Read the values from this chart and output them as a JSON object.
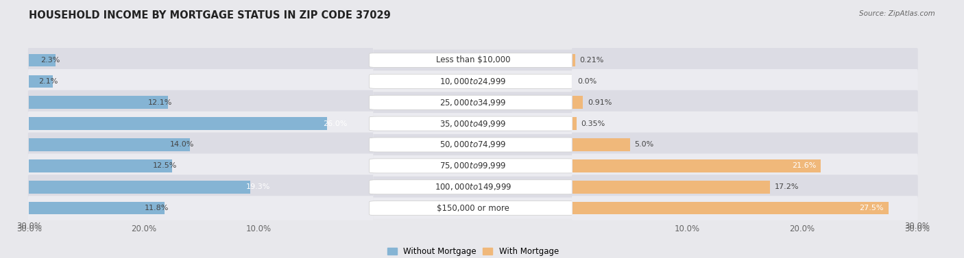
{
  "title": "HOUSEHOLD INCOME BY MORTGAGE STATUS IN ZIP CODE 37029",
  "source": "Source: ZipAtlas.com",
  "categories": [
    "Less than $10,000",
    "$10,000 to $24,999",
    "$25,000 to $34,999",
    "$35,000 to $49,999",
    "$50,000 to $74,999",
    "$75,000 to $99,999",
    "$100,000 to $149,999",
    "$150,000 or more"
  ],
  "without_mortgage": [
    2.3,
    2.1,
    12.1,
    26.0,
    14.0,
    12.5,
    19.3,
    11.8
  ],
  "with_mortgage": [
    0.21,
    0.0,
    0.91,
    0.35,
    5.0,
    21.6,
    17.2,
    27.5
  ],
  "without_mortgage_color": "#85b4d4",
  "with_mortgage_color": "#f0b87a",
  "bg_color": "#e8e8ec",
  "row_bg_even": "#dcdce4",
  "row_bg_odd": "#ebebf0",
  "label_bg": "#ffffff",
  "max_val": 30.0,
  "title_fontsize": 10.5,
  "label_fontsize": 8.0,
  "cat_fontsize": 8.5,
  "tick_fontsize": 8.5,
  "legend_fontsize": 8.5,
  "wom_inside_threshold": 18.0,
  "wm_inside_threshold": 18.0
}
